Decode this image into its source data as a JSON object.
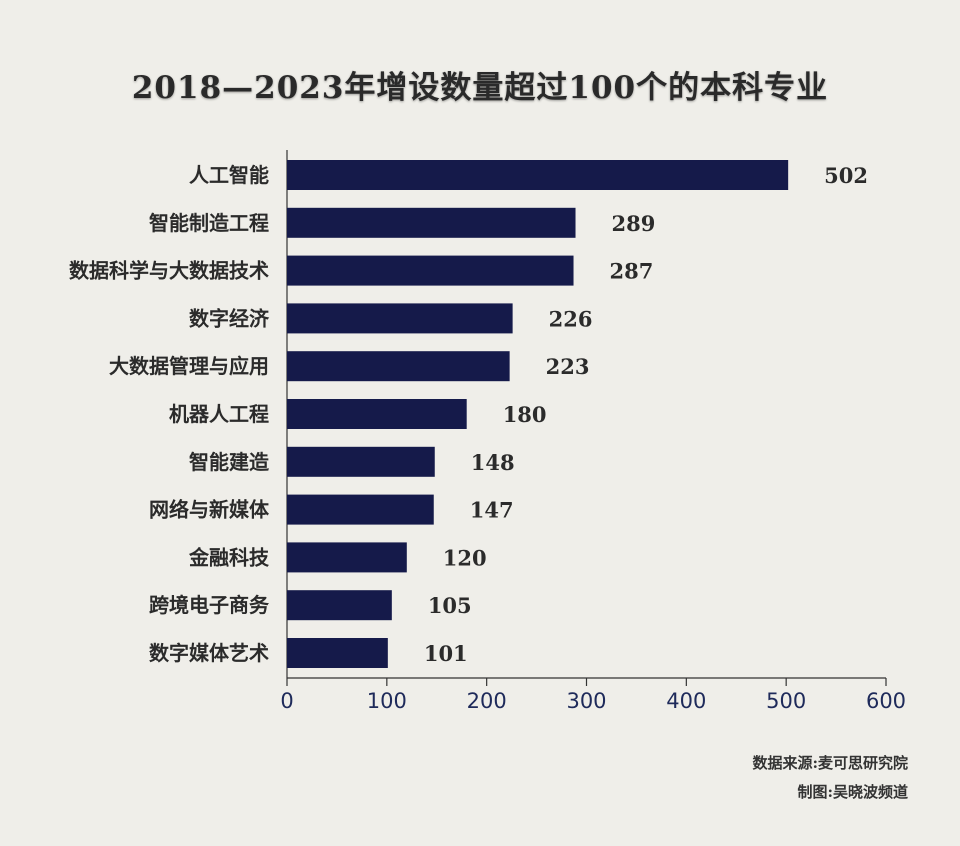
{
  "chart_data": {
    "type": "bar",
    "orientation": "horizontal",
    "title": "2018—2023年增设数量超过100个的本科专业",
    "categories": [
      "人工智能",
      "智能制造工程",
      "数据科学与大数据技术",
      "数字经济",
      "大数据管理与应用",
      "机器人工程",
      "智能建造",
      "网络与新媒体",
      "金融科技",
      "跨境电子商务",
      "数字媒体艺术"
    ],
    "values": [
      502,
      289,
      287,
      226,
      223,
      180,
      148,
      147,
      120,
      105,
      101
    ],
    "xlim": [
      0,
      600
    ],
    "xticks": [
      "0",
      "100",
      "200",
      "300",
      "400",
      "500",
      "600"
    ],
    "bar_color": "#151a4a",
    "grid": false,
    "data_labels": true
  },
  "footer": {
    "source": "数据来源:麦可思研究院",
    "credit": "制图:吴晓波频道"
  }
}
